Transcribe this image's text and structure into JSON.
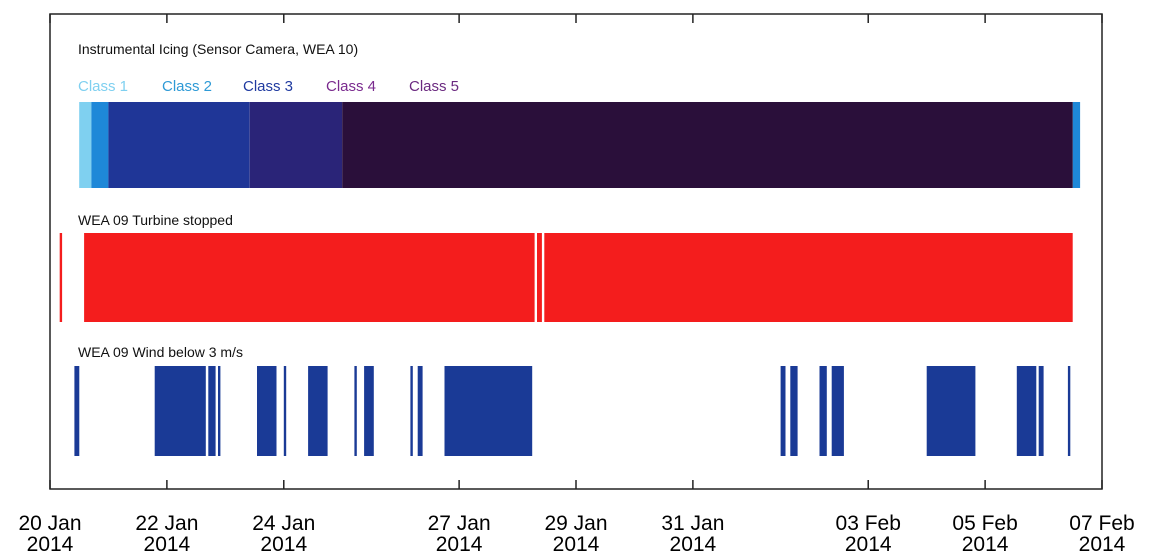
{
  "chart_data": {
    "type": "timeline",
    "x_range": [
      "2014-01-20",
      "2014-02-07"
    ],
    "x_ticks": [
      {
        "date": "2014-01-20",
        "label_day": "20 Jan",
        "label_year": "2014"
      },
      {
        "date": "2014-01-22",
        "label_day": "22 Jan",
        "label_year": "2014"
      },
      {
        "date": "2014-01-24",
        "label_day": "24 Jan",
        "label_year": "2014"
      },
      {
        "date": "2014-01-27",
        "label_day": "27 Jan",
        "label_year": "2014"
      },
      {
        "date": "2014-01-29",
        "label_day": "29 Jan",
        "label_year": "2014"
      },
      {
        "date": "2014-01-31",
        "label_day": "31 Jan",
        "label_year": "2014"
      },
      {
        "date": "2014-02-03",
        "label_day": "03 Feb",
        "label_year": "2014"
      },
      {
        "date": "2014-02-05",
        "label_day": "05 Feb",
        "label_year": "2014"
      },
      {
        "date": "2014-02-07",
        "label_day": "07 Feb",
        "label_year": "2014"
      }
    ],
    "panels": [
      {
        "title": "Instrumental Icing (Sensor Camera, WEA 10)",
        "legend": [
          {
            "name": "Class 1",
            "color": "#7fd0f0"
          },
          {
            "name": "Class 2",
            "color": "#2e9ad6"
          },
          {
            "name": "Class 3",
            "color": "#1f3aa0"
          },
          {
            "name": "Class 4",
            "color": "#7a2a8e"
          },
          {
            "name": "Class 5",
            "color": "#6b2a80"
          }
        ],
        "segments": [
          {
            "start": "2014-01-20 12:00",
            "end": "2014-01-20 17:00",
            "class": "Class 1",
            "color": "#7fd0f0"
          },
          {
            "start": "2014-01-20 17:00",
            "end": "2014-01-21 00:00",
            "class": "Class 2",
            "color": "#1e88d8"
          },
          {
            "start": "2014-01-21 00:00",
            "end": "2014-01-23 10:00",
            "class": "Class 3",
            "color": "#1f3697"
          },
          {
            "start": "2014-01-23 10:00",
            "end": "2014-01-25 00:00",
            "class": "Class 4",
            "color": "#2a2478"
          },
          {
            "start": "2014-01-25 00:00",
            "end": "2014-02-06 12:00",
            "class": "Class 5",
            "color": "#2a0f3a"
          },
          {
            "start": "2014-02-06 12:00",
            "end": "2014-02-06 15:00",
            "class": "Class 2",
            "color": "#1e88d8"
          }
        ]
      },
      {
        "title": "WEA 09 Turbine stopped",
        "color": "#f41d1d",
        "segments": [
          {
            "start": "2014-01-20 04:00",
            "end": "2014-01-20 05:00"
          },
          {
            "start": "2014-01-20 14:00",
            "end": "2014-01-28 07:00"
          },
          {
            "start": "2014-01-28 08:00",
            "end": "2014-01-28 10:00"
          },
          {
            "start": "2014-01-28 11:00",
            "end": "2014-02-06 12:00"
          }
        ]
      },
      {
        "title": "WEA 09 Wind below 3 m/s",
        "color": "#1a3a96",
        "segments": [
          {
            "start": "2014-01-20 10:00",
            "end": "2014-01-20 12:00"
          },
          {
            "start": "2014-01-21 19:00",
            "end": "2014-01-22 16:00"
          },
          {
            "start": "2014-01-22 17:00",
            "end": "2014-01-22 20:00"
          },
          {
            "start": "2014-01-22 21:00",
            "end": "2014-01-22 22:00"
          },
          {
            "start": "2014-01-23 13:00",
            "end": "2014-01-23 21:00"
          },
          {
            "start": "2014-01-24 00:00",
            "end": "2014-01-24 01:00"
          },
          {
            "start": "2014-01-24 10:00",
            "end": "2014-01-24 18:00"
          },
          {
            "start": "2014-01-25 05:00",
            "end": "2014-01-25 06:00"
          },
          {
            "start": "2014-01-25 09:00",
            "end": "2014-01-25 13:00"
          },
          {
            "start": "2014-01-26 04:00",
            "end": "2014-01-26 05:00"
          },
          {
            "start": "2014-01-26 07:00",
            "end": "2014-01-26 09:00"
          },
          {
            "start": "2014-01-26 18:00",
            "end": "2014-01-28 06:00"
          },
          {
            "start": "2014-02-01 12:00",
            "end": "2014-02-01 14:00"
          },
          {
            "start": "2014-02-01 16:00",
            "end": "2014-02-01 19:00"
          },
          {
            "start": "2014-02-02 04:00",
            "end": "2014-02-02 07:00"
          },
          {
            "start": "2014-02-02 09:00",
            "end": "2014-02-02 14:00"
          },
          {
            "start": "2014-02-04 00:00",
            "end": "2014-02-04 20:00"
          },
          {
            "start": "2014-02-05 13:00",
            "end": "2014-02-05 21:00"
          },
          {
            "start": "2014-02-05 22:00",
            "end": "2014-02-06 00:00"
          },
          {
            "start": "2014-02-06 10:00",
            "end": "2014-02-06 11:00"
          }
        ]
      }
    ]
  }
}
